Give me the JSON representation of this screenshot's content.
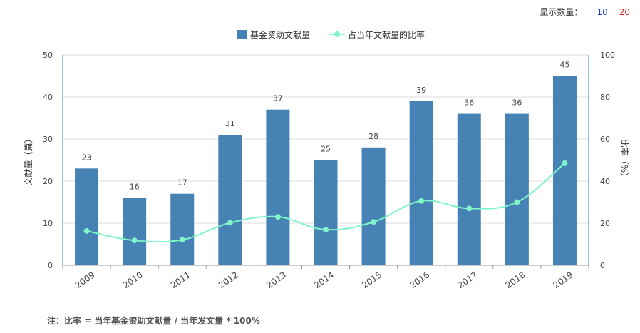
{
  "controls": {
    "label": "显示数量：",
    "options": [
      {
        "text": "10",
        "color": "#1f3fd1"
      },
      {
        "text": "20",
        "color": "#d11f1f"
      }
    ]
  },
  "footnote": "注：比率 = 当年基金资助文献量 / 当年发文量 * 100%",
  "colors": {
    "bar": "#4682b4",
    "line": "#7ff5c8",
    "axis": "#2b7fb8"
  },
  "chart_data": {
    "type": "bar+line",
    "categories": [
      "2009",
      "2010",
      "2011",
      "2012",
      "2013",
      "2014",
      "2015",
      "2016",
      "2017",
      "2018",
      "2019"
    ],
    "series": [
      {
        "name": "基金资助文献量",
        "type": "bar",
        "axis": "left",
        "values": [
          23,
          16,
          17,
          31,
          37,
          25,
          28,
          39,
          36,
          36,
          45
        ]
      },
      {
        "name": "占当年文献量的比率",
        "type": "line",
        "axis": "right",
        "values": [
          16.3,
          11.8,
          12.1,
          20.2,
          23.0,
          16.9,
          20.6,
          30.6,
          27.0,
          30.0,
          48.5
        ]
      }
    ],
    "ylabel_left": "文献量（篇）",
    "ylabel_right": "比率（%）",
    "ylim_left": [
      0,
      50
    ],
    "ylim_right": [
      0,
      100
    ],
    "yticks_left": [
      "0",
      "10",
      "20",
      "30",
      "40",
      "50"
    ],
    "yticks_right": [
      "0",
      "20",
      "40",
      "60",
      "80",
      "100"
    ],
    "legend_position": "top-center"
  }
}
